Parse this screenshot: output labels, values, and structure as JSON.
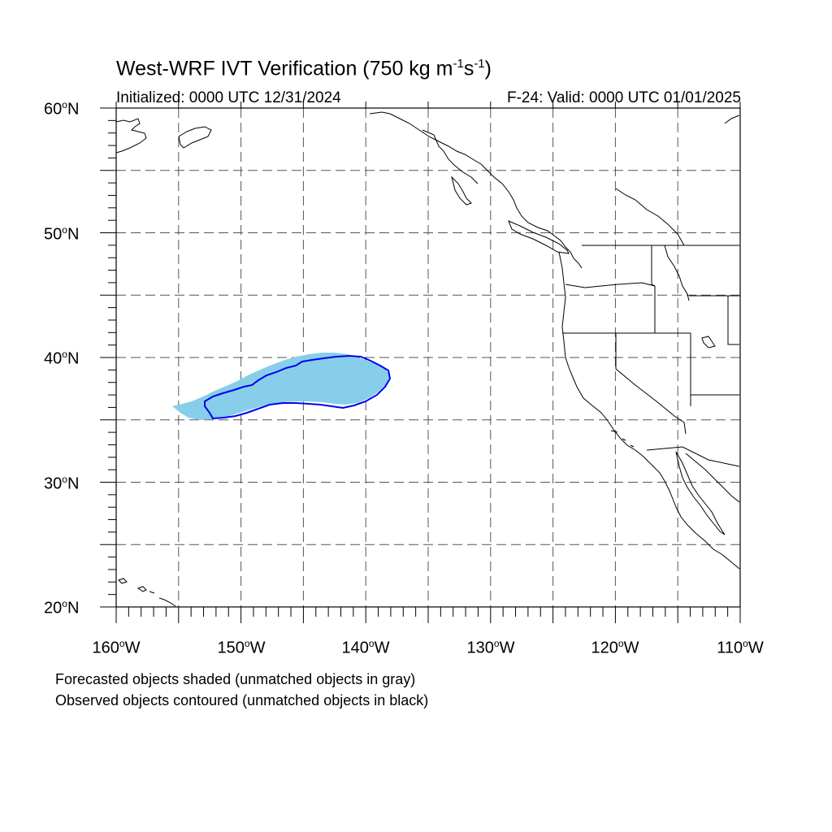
{
  "title": {
    "main": "West-WRF IVT Verification (750 kg m",
    "exp1": "-1",
    "mid": "s",
    "exp2": "-1",
    "close": ")"
  },
  "initialized": "Initialized: 0000 UTC 12/31/2024",
  "valid": "F-24: Valid: 0000 UTC 01/01/2025",
  "axes": {
    "lat_labels": [
      {
        "deg": "60",
        "hemi": "N"
      },
      {
        "deg": "50",
        "hemi": "N"
      },
      {
        "deg": "40",
        "hemi": "N"
      },
      {
        "deg": "30",
        "hemi": "N"
      },
      {
        "deg": "20",
        "hemi": "N"
      }
    ],
    "lon_labels": [
      {
        "deg": "160",
        "hemi": "W"
      },
      {
        "deg": "150",
        "hemi": "W"
      },
      {
        "deg": "140",
        "hemi": "W"
      },
      {
        "deg": "130",
        "hemi": "W"
      },
      {
        "deg": "120",
        "hemi": "W"
      },
      {
        "deg": "110",
        "hemi": "W"
      }
    ],
    "lat_range": [
      20,
      60
    ],
    "lon_range": [
      -160,
      -110
    ],
    "grid_spacing_deg": 5
  },
  "captions": {
    "line1": "Forecasted objects shaded (unmatched objects in gray)",
    "line2": "Observed objects contoured (unmatched objects in black)"
  },
  "colors": {
    "forecast_fill": "#87ceeb",
    "observed_contour": "#0000ee",
    "coastline": "#000000",
    "grid": "#555555"
  }
}
